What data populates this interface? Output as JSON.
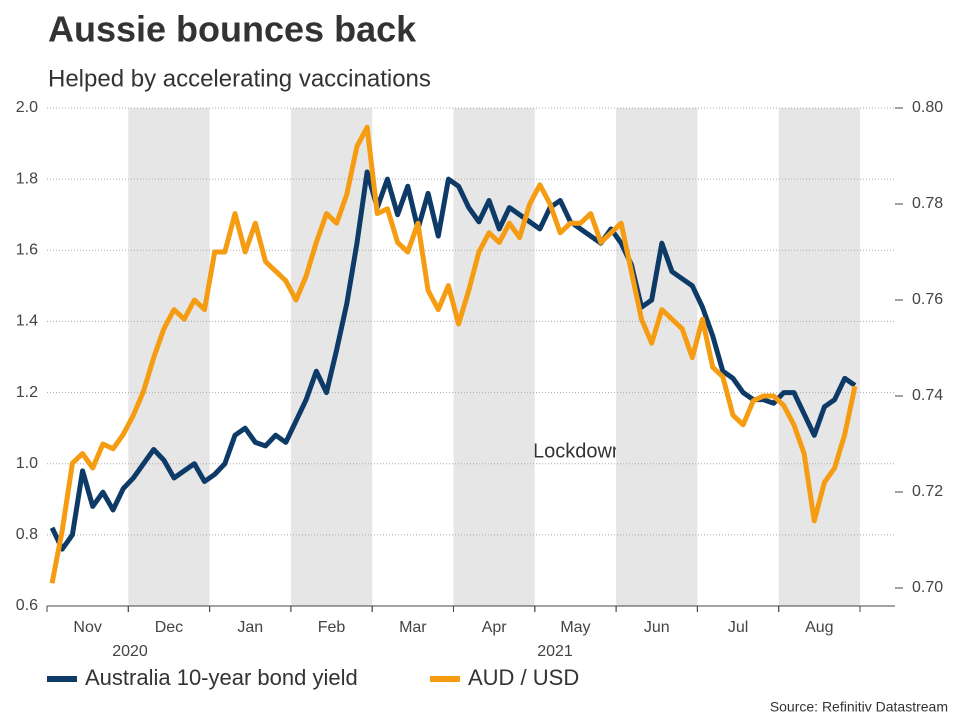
{
  "chart_data": {
    "type": "line",
    "title": "Aussie bounces back",
    "subtitle": "Helped by accelerating vaccinations",
    "source": "Source: Refinitiv Datastream",
    "annotation": "Lockdowns begin",
    "year_labels": [
      "2020",
      "2021"
    ],
    "categories": [
      null,
      null,
      null,
      "Nov",
      null,
      null,
      null,
      null,
      null,
      null,
      null,
      "Dec",
      null,
      null,
      null,
      null,
      null,
      null,
      null,
      "Jan",
      null,
      null,
      null,
      null,
      null,
      null,
      null,
      "Feb",
      null,
      null,
      null,
      null,
      null,
      null,
      null,
      "Mar",
      null,
      null,
      null,
      null,
      null,
      null,
      null,
      "Apr",
      null,
      null,
      null,
      null,
      null,
      null,
      null,
      "May",
      null,
      null,
      null,
      null,
      null,
      null,
      null,
      "Jun",
      null,
      null,
      null,
      null,
      null,
      null,
      null,
      "Jul",
      null,
      null,
      null,
      null,
      null,
      null,
      null,
      "Aug",
      null,
      null,
      null,
      null
    ],
    "series": [
      {
        "name": "Australia 10-year bond yield",
        "color": "#0d3a66",
        "values": [
          0.82,
          0.76,
          0.8,
          0.98,
          0.88,
          0.92,
          0.87,
          0.93,
          0.96,
          1.0,
          1.04,
          1.01,
          0.96,
          0.98,
          1.0,
          0.95,
          0.97,
          1.0,
          1.08,
          1.1,
          1.06,
          1.05,
          1.08,
          1.06,
          1.12,
          1.18,
          1.26,
          1.2,
          1.32,
          1.45,
          1.62,
          1.82,
          1.72,
          1.8,
          1.7,
          1.78,
          1.66,
          1.76,
          1.64,
          1.8,
          1.78,
          1.72,
          1.68,
          1.74,
          1.66,
          1.72,
          1.7,
          1.68,
          1.66,
          1.72,
          1.74,
          1.68,
          1.66,
          1.64,
          1.62,
          1.66,
          1.62,
          1.56,
          1.44,
          1.46,
          1.62,
          1.54,
          1.52,
          1.5,
          1.44,
          1.36,
          1.26,
          1.24,
          1.2,
          1.18,
          1.18,
          1.17,
          1.2,
          1.2,
          1.14,
          1.08,
          1.16,
          1.18,
          1.24,
          1.22
        ]
      },
      {
        "name": "AUD / USD",
        "color": "#f59c12",
        "axis": "y2",
        "values": [
          0.701,
          0.712,
          0.726,
          0.728,
          0.725,
          0.73,
          0.729,
          0.732,
          0.736,
          0.741,
          0.748,
          0.754,
          0.758,
          0.756,
          0.76,
          0.758,
          0.77,
          0.77,
          0.778,
          0.77,
          0.776,
          0.768,
          0.766,
          0.764,
          0.76,
          0.765,
          0.772,
          0.778,
          0.776,
          0.782,
          0.792,
          0.796,
          0.778,
          0.779,
          0.772,
          0.77,
          0.776,
          0.762,
          0.758,
          0.763,
          0.755,
          0.762,
          0.77,
          0.774,
          0.772,
          0.776,
          0.773,
          0.78,
          0.784,
          0.78,
          0.774,
          0.776,
          0.776,
          0.778,
          0.772,
          0.774,
          0.776,
          0.766,
          0.756,
          0.751,
          0.758,
          0.756,
          0.754,
          0.748,
          0.756,
          0.746,
          0.744,
          0.736,
          0.734,
          0.739,
          0.74,
          0.74,
          0.738,
          0.734,
          0.728,
          0.714,
          0.722,
          0.725,
          0.732,
          0.742
        ]
      }
    ],
    "ylim": [
      0.6,
      2.0
    ],
    "yticks": [
      {
        "value": 0.6,
        "label": "0.6"
      },
      0.8,
      {
        "value": 1.0,
        "label": "1.0"
      },
      1.2,
      1.4,
      1.6,
      1.8,
      {
        "value": 2.0,
        "label": "2.0"
      }
    ],
    "y2lim": [
      0.69625,
      0.8
    ],
    "y2ticks": [
      {
        "value": 0.7,
        "label": "0.70"
      },
      0.72,
      0.74,
      0.76,
      0.78,
      {
        "value": 0.8,
        "label": "0.80"
      }
    ],
    "grid": true
  }
}
